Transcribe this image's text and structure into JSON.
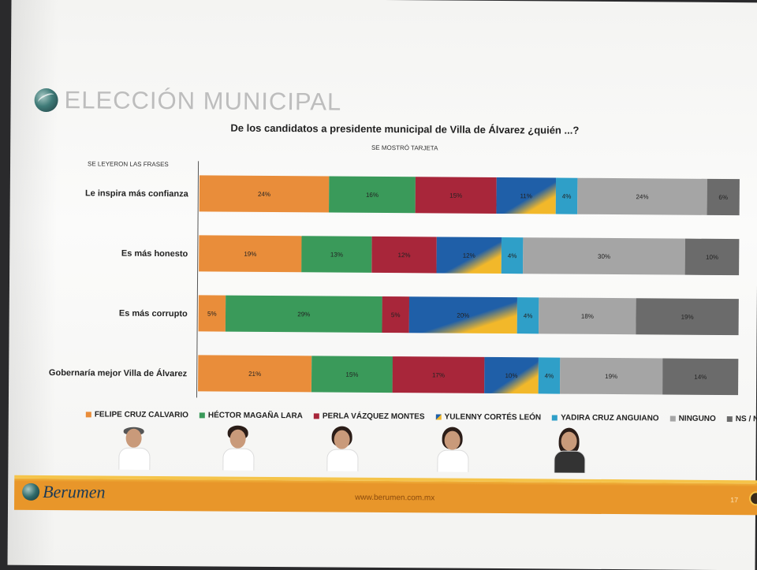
{
  "header": {
    "title": "ELECCIÓN MUNICIPAL"
  },
  "chart_data": {
    "type": "bar",
    "stacked": true,
    "orientation": "horizontal",
    "title": "De los candidatos a presidente municipal de Villa de Álvarez ¿quién ...?",
    "subtitle": "SE MOSTRÓ TARJETA",
    "axis_note": "SE LEYERON LAS FRASES",
    "categories": [
      "Le inspira más confianza",
      "Es más honesto",
      "Es más corrupto",
      "Gobernaría mejor Villa de Álvarez"
    ],
    "series": [
      {
        "name": "FELIPE CRUZ CALVARIO",
        "color": "#e98d3a",
        "values": [
          24,
          19,
          5,
          21
        ]
      },
      {
        "name": "HÉCTOR MAGAÑA LARA",
        "color": "#3a9a5a",
        "values": [
          16,
          13,
          29,
          15
        ]
      },
      {
        "name": "PERLA VÁZQUEZ MONTES",
        "color": "#a8263a",
        "values": [
          15,
          12,
          5,
          17
        ]
      },
      {
        "name": "YULENNY CORTÉS LEÓN",
        "color": "#1f5fa8",
        "accent": "#f2b82a",
        "values": [
          11,
          12,
          20,
          10
        ]
      },
      {
        "name": "YADIRA CRUZ ANGUIANO",
        "color": "#2f9fc8",
        "values": [
          4,
          4,
          4,
          4
        ]
      },
      {
        "name": "NINGUNO",
        "color": "#a5a5a5",
        "values": [
          24,
          30,
          18,
          19
        ]
      },
      {
        "name": "NS / NR",
        "color": "#6b6b6b",
        "values": [
          6,
          10,
          19,
          14
        ]
      }
    ],
    "legend_position": "bottom",
    "grid": false
  },
  "footer": {
    "brand": "Berumen",
    "url": "www.berumen.com.mx",
    "page_number": "17"
  }
}
